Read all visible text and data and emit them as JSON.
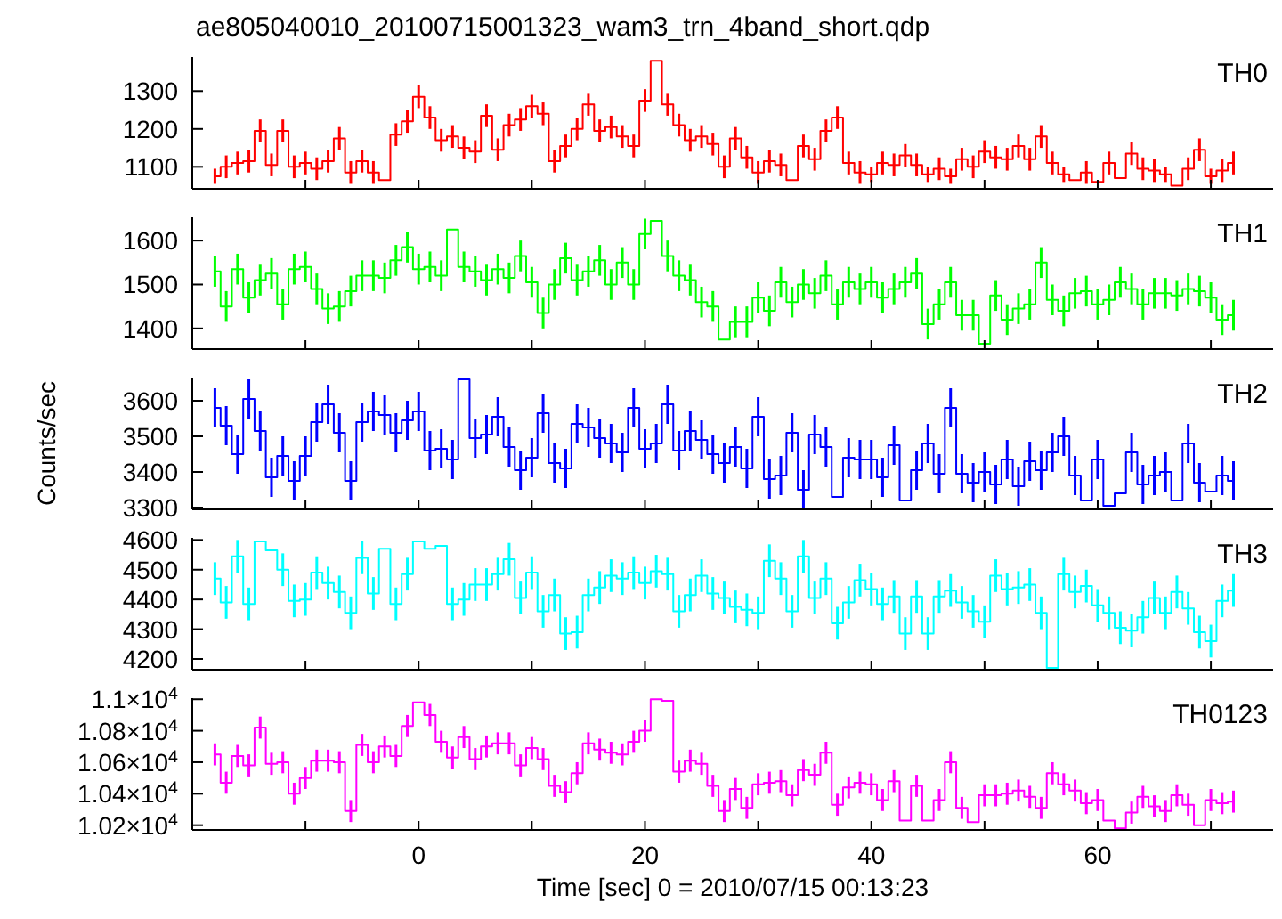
{
  "chart_data": [
    {
      "type": "step",
      "title": "ae805040010_20100715001323_wam3_trn_4band_short.qdp",
      "annotations": [
        "TH0"
      ],
      "tick_labels": "y",
      "marker": "none",
      "color": "#ff0000",
      "x": [
        -18,
        -17,
        -16,
        -15,
        -14,
        -13,
        -12,
        -11,
        -10,
        -9,
        -8,
        -7,
        -6,
        -5,
        -4,
        -3,
        -2,
        -1,
        0,
        1,
        2,
        3,
        4,
        5,
        6,
        7,
        8,
        9,
        10,
        11,
        12,
        13,
        14,
        15,
        16,
        17,
        18,
        19,
        20,
        21,
        22,
        23,
        24,
        25,
        26,
        27,
        28,
        29,
        30,
        31,
        32,
        33,
        34,
        35,
        36,
        37,
        38,
        39,
        40,
        41,
        42,
        43,
        44,
        45,
        46,
        47,
        48,
        49,
        50,
        51,
        52,
        53,
        54,
        55,
        56,
        57,
        58,
        59,
        60,
        61,
        62,
        63,
        64,
        65,
        66,
        67,
        68,
        69,
        70,
        71,
        72
      ],
      "values": [
        1075,
        1100,
        1110,
        1115,
        1195,
        1105,
        1195,
        1100,
        1110,
        1095,
        1115,
        1175,
        1085,
        1115,
        1085,
        1065,
        1185,
        1220,
        1285,
        1230,
        1170,
        1180,
        1150,
        1140,
        1235,
        1145,
        1210,
        1225,
        1260,
        1240,
        1115,
        1155,
        1200,
        1265,
        1195,
        1205,
        1180,
        1155,
        1275,
        1380,
        1265,
        1210,
        1170,
        1180,
        1160,
        1100,
        1175,
        1125,
        1085,
        1115,
        1105,
        1065,
        1155,
        1120,
        1195,
        1230,
        1110,
        1085,
        1080,
        1110,
        1105,
        1130,
        1105,
        1080,
        1095,
        1075,
        1120,
        1100,
        1140,
        1125,
        1120,
        1155,
        1120,
        1180,
        1110,
        1080,
        1065,
        1085,
        1060,
        1110,
        1070,
        1135,
        1095,
        1090,
        1080,
        1050,
        1095,
        1145,
        1075,
        1090,
        1110
      ],
      "errors": [
        20,
        30,
        30,
        30,
        30,
        30,
        30,
        30,
        30,
        30,
        30,
        30,
        30,
        30,
        30,
        null,
        30,
        30,
        30,
        30,
        30,
        30,
        30,
        30,
        30,
        30,
        30,
        30,
        30,
        30,
        30,
        30,
        30,
        30,
        30,
        30,
        30,
        30,
        30,
        null,
        30,
        30,
        30,
        30,
        30,
        30,
        30,
        30,
        30,
        30,
        30,
        null,
        30,
        30,
        30,
        30,
        30,
        30,
        20,
        30,
        30,
        30,
        30,
        20,
        30,
        20,
        30,
        30,
        30,
        30,
        30,
        30,
        30,
        30,
        30,
        20,
        null,
        30,
        null,
        30,
        null,
        30,
        30,
        30,
        20,
        null,
        30,
        30,
        20,
        30,
        30
      ],
      "xlim": [
        -20,
        75.5
      ],
      "xticks": [
        {
          "value": -10,
          "label": null
        },
        {
          "value": 0,
          "label": null
        },
        {
          "value": 10,
          "label": null
        },
        {
          "value": 20,
          "label": null
        },
        {
          "value": 30,
          "label": null
        },
        {
          "value": 40,
          "label": null
        },
        {
          "value": 50,
          "label": null
        },
        {
          "value": 60,
          "label": null
        },
        {
          "value": 70,
          "label": null
        }
      ],
      "ylim": [
        1042,
        1390
      ],
      "yticks": [
        1100,
        1200,
        1300
      ]
    },
    {
      "type": "step",
      "annotations": [
        "TH1"
      ],
      "tick_labels": "y",
      "marker": "none",
      "color": "#00ff00",
      "x": [
        -18,
        -17,
        -16,
        -15,
        -14,
        -13,
        -12,
        -11,
        -10,
        -9,
        -8,
        -7,
        -6,
        -5,
        -4,
        -3,
        -2,
        -1,
        0,
        1,
        2,
        3,
        4,
        5,
        6,
        7,
        8,
        9,
        10,
        11,
        12,
        13,
        14,
        15,
        16,
        17,
        18,
        19,
        20,
        21,
        22,
        23,
        24,
        25,
        26,
        27,
        28,
        29,
        30,
        31,
        32,
        33,
        34,
        35,
        36,
        37,
        38,
        39,
        40,
        41,
        42,
        43,
        44,
        45,
        46,
        47,
        48,
        49,
        50,
        51,
        52,
        53,
        54,
        55,
        56,
        57,
        58,
        59,
        60,
        61,
        62,
        63,
        64,
        65,
        66,
        67,
        68,
        69,
        70,
        71,
        72
      ],
      "values": [
        1530,
        1450,
        1535,
        1470,
        1510,
        1525,
        1455,
        1535,
        1540,
        1490,
        1445,
        1450,
        1485,
        1520,
        1520,
        1515,
        1555,
        1585,
        1535,
        1540,
        1520,
        1625,
        1540,
        1530,
        1510,
        1535,
        1515,
        1565,
        1505,
        1435,
        1500,
        1560,
        1510,
        1530,
        1555,
        1500,
        1550,
        1500,
        1615,
        1645,
        1565,
        1520,
        1510,
        1460,
        1450,
        1375,
        1415,
        1415,
        1470,
        1440,
        1505,
        1460,
        1500,
        1480,
        1520,
        1455,
        1505,
        1490,
        1505,
        1470,
        1490,
        1505,
        1525,
        1410,
        1455,
        1505,
        1430,
        1430,
        1365,
        1475,
        1420,
        1445,
        1455,
        1550,
        1465,
        1440,
        1480,
        1485,
        1455,
        1465,
        1505,
        1490,
        1455,
        1480,
        1480,
        1475,
        1490,
        1485,
        1470,
        1420,
        1430
      ],
      "errors": [
        35,
        35,
        35,
        35,
        35,
        35,
        35,
        35,
        35,
        35,
        35,
        35,
        35,
        35,
        35,
        35,
        35,
        35,
        35,
        35,
        35,
        null,
        35,
        35,
        35,
        35,
        35,
        35,
        35,
        35,
        35,
        35,
        35,
        35,
        35,
        35,
        35,
        35,
        35,
        null,
        35,
        35,
        35,
        35,
        35,
        null,
        35,
        35,
        35,
        35,
        35,
        35,
        35,
        35,
        35,
        35,
        35,
        35,
        35,
        35,
        35,
        35,
        35,
        35,
        35,
        35,
        35,
        35,
        null,
        35,
        35,
        35,
        35,
        35,
        35,
        35,
        35,
        35,
        35,
        35,
        35,
        35,
        35,
        35,
        35,
        35,
        35,
        35,
        35,
        35,
        35
      ],
      "xlim": [
        -20,
        75.5
      ],
      "xticks": [
        {
          "value": -10,
          "label": null
        },
        {
          "value": 0,
          "label": null
        },
        {
          "value": 10,
          "label": null
        },
        {
          "value": 20,
          "label": null
        },
        {
          "value": 30,
          "label": null
        },
        {
          "value": 40,
          "label": null
        },
        {
          "value": 50,
          "label": null
        },
        {
          "value": 60,
          "label": null
        },
        {
          "value": 70,
          "label": null
        }
      ],
      "ylim": [
        1353,
        1653
      ],
      "yticks": [
        1400,
        1500,
        1600
      ]
    },
    {
      "type": "step",
      "annotations": [
        "TH2"
      ],
      "ylabel": "Counts/sec",
      "tick_labels": "y",
      "marker": "none",
      "color": "#0000ff",
      "x": [
        -18,
        -17,
        -16,
        -15,
        -14,
        -13,
        -12,
        -11,
        -10,
        -9,
        -8,
        -7,
        -6,
        -5,
        -4,
        -3,
        -2,
        -1,
        0,
        1,
        2,
        3,
        4,
        5,
        6,
        7,
        8,
        9,
        10,
        11,
        12,
        13,
        14,
        15,
        16,
        17,
        18,
        19,
        20,
        21,
        22,
        23,
        24,
        25,
        26,
        27,
        28,
        29,
        30,
        31,
        32,
        33,
        34,
        35,
        36,
        37,
        38,
        39,
        40,
        41,
        42,
        43,
        44,
        45,
        46,
        47,
        48,
        49,
        50,
        51,
        52,
        53,
        54,
        55,
        56,
        57,
        58,
        59,
        60,
        61,
        62,
        63,
        64,
        65,
        66,
        67,
        68,
        69,
        70,
        71,
        72
      ],
      "values": [
        3580,
        3530,
        3450,
        3605,
        3515,
        3385,
        3445,
        3375,
        3445,
        3540,
        3590,
        3510,
        3375,
        3540,
        3570,
        3560,
        3510,
        3545,
        3570,
        3460,
        3465,
        3435,
        3660,
        3495,
        3505,
        3555,
        3470,
        3405,
        3440,
        3565,
        3425,
        3410,
        3535,
        3525,
        3495,
        3480,
        3455,
        3580,
        3465,
        3480,
        3590,
        3460,
        3515,
        3490,
        3450,
        3425,
        3470,
        3410,
        3555,
        3380,
        3390,
        3510,
        3350,
        3505,
        3470,
        3330,
        3440,
        3435,
        3435,
        3385,
        3475,
        3320,
        3405,
        3480,
        3395,
        3580,
        3395,
        3370,
        3400,
        3365,
        3435,
        3360,
        3430,
        3405,
        3455,
        3500,
        3390,
        3320,
        3435,
        3305,
        3340,
        3455,
        3365,
        3390,
        3400,
        3320,
        3480,
        3370,
        3345,
        3390,
        3375
      ],
      "errors": [
        55,
        55,
        55,
        55,
        55,
        55,
        55,
        55,
        55,
        55,
        55,
        55,
        55,
        55,
        55,
        55,
        55,
        55,
        55,
        55,
        55,
        55,
        null,
        55,
        55,
        55,
        55,
        55,
        55,
        55,
        55,
        55,
        55,
        55,
        55,
        55,
        55,
        55,
        55,
        55,
        55,
        55,
        55,
        55,
        55,
        55,
        55,
        55,
        55,
        55,
        55,
        55,
        55,
        55,
        55,
        null,
        55,
        55,
        55,
        55,
        55,
        null,
        55,
        55,
        55,
        55,
        55,
        55,
        55,
        55,
        55,
        55,
        55,
        55,
        55,
        55,
        55,
        null,
        55,
        null,
        null,
        55,
        55,
        55,
        55,
        null,
        55,
        55,
        null,
        55,
        55
      ],
      "xlim": [
        -20,
        75.5
      ],
      "xticks": [
        {
          "value": -10,
          "label": null
        },
        {
          "value": 0,
          "label": null
        },
        {
          "value": 10,
          "label": null
        },
        {
          "value": 20,
          "label": null
        },
        {
          "value": 30,
          "label": null
        },
        {
          "value": 40,
          "label": null
        },
        {
          "value": 50,
          "label": null
        },
        {
          "value": 60,
          "label": null
        },
        {
          "value": 70,
          "label": null
        }
      ],
      "ylim": [
        3295,
        3665
      ],
      "yticks": [
        3300,
        3400,
        3500,
        3600
      ]
    },
    {
      "type": "step",
      "annotations": [
        "TH3"
      ],
      "tick_labels": "y",
      "marker": "none",
      "color": "#00ffff",
      "x": [
        -18,
        -17,
        -16,
        -15,
        -14,
        -13,
        -12,
        -11,
        -10,
        -9,
        -8,
        -7,
        -6,
        -5,
        -4,
        -3,
        -2,
        -1,
        0,
        1,
        2,
        3,
        4,
        5,
        6,
        7,
        8,
        9,
        10,
        11,
        12,
        13,
        14,
        15,
        16,
        17,
        18,
        19,
        20,
        21,
        22,
        23,
        24,
        25,
        26,
        27,
        28,
        29,
        30,
        31,
        32,
        33,
        34,
        35,
        36,
        37,
        38,
        39,
        40,
        41,
        42,
        43,
        44,
        45,
        46,
        47,
        48,
        49,
        50,
        51,
        52,
        53,
        54,
        55,
        56,
        57,
        58,
        59,
        60,
        61,
        62,
        63,
        64,
        65,
        66,
        67,
        68,
        69,
        70,
        71,
        72
      ],
      "values": [
        4470,
        4390,
        4545,
        4385,
        4595,
        4565,
        4500,
        4395,
        4400,
        4490,
        4455,
        4425,
        4355,
        4540,
        4420,
        4570,
        4385,
        4485,
        4595,
        4570,
        4580,
        4385,
        4400,
        4450,
        4450,
        4485,
        4535,
        4405,
        4490,
        4360,
        4415,
        4285,
        4290,
        4415,
        4440,
        4480,
        4470,
        4490,
        4455,
        4495,
        4485,
        4360,
        4415,
        4480,
        4420,
        4405,
        4375,
        4365,
        4355,
        4530,
        4470,
        4360,
        4545,
        4405,
        4470,
        4320,
        4390,
        4465,
        4435,
        4385,
        4410,
        4285,
        4410,
        4285,
        4410,
        4430,
        4390,
        4360,
        4325,
        4480,
        4435,
        4440,
        4450,
        4355,
        4170,
        4485,
        4425,
        4445,
        4380,
        4355,
        4305,
        4295,
        4340,
        4405,
        4355,
        4425,
        4370,
        4290,
        4260,
        4395,
        4430
      ],
      "errors": [
        55,
        55,
        55,
        55,
        null,
        null,
        55,
        55,
        55,
        55,
        55,
        55,
        55,
        55,
        55,
        null,
        55,
        55,
        null,
        null,
        null,
        55,
        55,
        55,
        55,
        55,
        55,
        55,
        55,
        55,
        55,
        55,
        55,
        55,
        55,
        55,
        55,
        55,
        55,
        55,
        55,
        55,
        55,
        55,
        55,
        55,
        55,
        55,
        55,
        55,
        55,
        55,
        55,
        55,
        55,
        55,
        55,
        55,
        55,
        55,
        55,
        55,
        55,
        55,
        55,
        55,
        55,
        55,
        55,
        55,
        55,
        55,
        55,
        55,
        null,
        55,
        55,
        55,
        55,
        55,
        55,
        55,
        55,
        55,
        55,
        55,
        55,
        55,
        55,
        55,
        55
      ],
      "xlim": [
        -20,
        75.5
      ],
      "xticks": [
        {
          "value": -10,
          "label": null
        },
        {
          "value": 0,
          "label": null
        },
        {
          "value": 10,
          "label": null
        },
        {
          "value": 20,
          "label": null
        },
        {
          "value": 30,
          "label": null
        },
        {
          "value": 40,
          "label": null
        },
        {
          "value": 50,
          "label": null
        },
        {
          "value": 60,
          "label": null
        },
        {
          "value": 70,
          "label": null
        }
      ],
      "ylim": [
        4164,
        4607
      ],
      "yticks": [
        4200,
        4300,
        4400,
        4500,
        4600
      ]
    },
    {
      "type": "step",
      "annotations": [
        "TH0123"
      ],
      "xlabel": "Time [sec] 0 = 2010/07/15 00:13:23",
      "marker": "none",
      "color": "#ff00ff",
      "x": [
        -18,
        -17,
        -16,
        -15,
        -14,
        -13,
        -12,
        -11,
        -10,
        -9,
        -8,
        -7,
        -6,
        -5,
        -4,
        -3,
        -2,
        -1,
        0,
        1,
        2,
        3,
        4,
        5,
        6,
        7,
        8,
        9,
        10,
        11,
        12,
        13,
        14,
        15,
        16,
        17,
        18,
        19,
        20,
        21,
        22,
        23,
        24,
        25,
        26,
        27,
        28,
        29,
        30,
        31,
        32,
        33,
        34,
        35,
        36,
        37,
        38,
        39,
        40,
        41,
        42,
        43,
        44,
        45,
        46,
        47,
        48,
        49,
        50,
        51,
        52,
        53,
        54,
        55,
        56,
        57,
        58,
        59,
        60,
        61,
        62,
        63,
        64,
        65,
        66,
        67,
        68,
        69,
        70,
        71,
        72
      ],
      "values": [
        10650,
        10470,
        10640,
        10580,
        10820,
        10590,
        10600,
        10400,
        10500,
        10610,
        10610,
        10600,
        10290,
        10710,
        10600,
        10700,
        10640,
        10830,
        10980,
        10900,
        10730,
        10630,
        10760,
        10620,
        10700,
        10720,
        10720,
        10580,
        10690,
        10620,
        10450,
        10410,
        10530,
        10720,
        10680,
        10660,
        10650,
        10730,
        10800,
        11000,
        10990,
        10540,
        10610,
        10590,
        10450,
        10290,
        10430,
        10310,
        10460,
        10470,
        10480,
        10390,
        10550,
        10520,
        10660,
        10330,
        10440,
        10470,
        10460,
        10360,
        10480,
        10230,
        10450,
        10230,
        10360,
        10600,
        10310,
        10220,
        10390,
        10390,
        10400,
        10420,
        10380,
        10310,
        10530,
        10460,
        10420,
        10340,
        10360,
        10230,
        10180,
        10280,
        10380,
        10320,
        10290,
        10390,
        10330,
        10200,
        10360,
        10340,
        10350
      ],
      "errors": [
        70,
        70,
        70,
        70,
        70,
        70,
        70,
        70,
        70,
        70,
        70,
        70,
        70,
        70,
        70,
        70,
        70,
        70,
        null,
        70,
        70,
        70,
        70,
        70,
        70,
        70,
        70,
        70,
        70,
        70,
        70,
        70,
        70,
        70,
        70,
        70,
        70,
        70,
        70,
        null,
        null,
        70,
        70,
        70,
        70,
        70,
        70,
        70,
        70,
        70,
        70,
        70,
        70,
        70,
        70,
        70,
        70,
        70,
        70,
        70,
        70,
        null,
        70,
        null,
        70,
        70,
        70,
        null,
        70,
        70,
        70,
        70,
        70,
        70,
        70,
        70,
        70,
        70,
        70,
        null,
        null,
        70,
        70,
        70,
        70,
        70,
        70,
        null,
        70,
        70,
        70
      ],
      "xlim": [
        -20,
        75.5
      ],
      "xticks": [
        {
          "value": -10,
          "label": null
        },
        0,
        {
          "value": 10,
          "label": null
        },
        20,
        {
          "value": 30,
          "label": null
        },
        40,
        {
          "value": 50,
          "label": null
        },
        60,
        {
          "value": 70,
          "label": null
        }
      ],
      "ylim": [
        10170,
        11007
      ],
      "yticks": [
        {
          "value": 10200,
          "label": "1.02×10$^{4}$"
        },
        {
          "value": 10400,
          "label": "1.04×10$^{4}$"
        },
        {
          "value": 10600,
          "label": "1.06×10$^{4}$"
        },
        {
          "value": 10800,
          "label": "1.08×10$^{4}$"
        },
        {
          "value": 11000,
          "label": "1.1×10$^{4}$"
        }
      ]
    }
  ]
}
